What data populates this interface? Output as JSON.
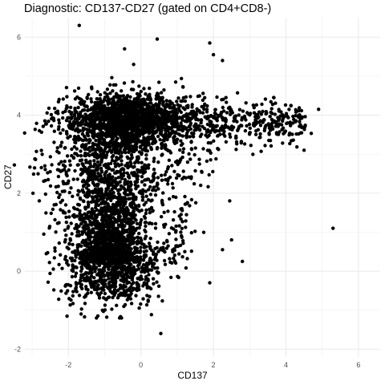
{
  "chart_data": {
    "type": "scatter",
    "title": "Diagnostic: CD137-CD27 (gated on CD4+CD8-)",
    "xlabel": "CD137",
    "ylabel": "CD27",
    "xlim": [
      -3.2,
      6.6
    ],
    "ylim": [
      -2.2,
      6.5
    ],
    "x_ticks": [
      -2,
      0,
      2,
      4,
      6
    ],
    "y_ticks": [
      -2,
      0,
      2,
      4,
      6
    ],
    "grid": true,
    "point_color": "#000000",
    "outlier_points": [
      {
        "x": 0.45,
        "y": 5.95
      },
      {
        "x": 1.9,
        "y": 5.85
      },
      {
        "x": 2.0,
        "y": 5.55
      },
      {
        "x": 2.25,
        "y": 5.4
      },
      {
        "x": 4.9,
        "y": 4.15
      },
      {
        "x": 4.4,
        "y": 3.75
      },
      {
        "x": 4.5,
        "y": 3.1
      },
      {
        "x": 5.3,
        "y": 1.1
      },
      {
        "x": 2.45,
        "y": 1.8
      },
      {
        "x": 2.5,
        "y": 0.8
      },
      {
        "x": 2.25,
        "y": 0.55
      },
      {
        "x": 2.8,
        "y": 0.25
      },
      {
        "x": 1.9,
        "y": -0.3
      },
      {
        "x": 0.55,
        "y": -1.6
      },
      {
        "x": -1.65,
        "y": -1.1
      },
      {
        "x": -1.8,
        "y": -0.45
      },
      {
        "x": -2.0,
        "y": -0.35
      },
      {
        "x": -2.5,
        "y": 2.55
      },
      {
        "x": -2.8,
        "y": 3.6
      },
      {
        "x": -1.7,
        "y": 6.3
      },
      {
        "x": -0.45,
        "y": 5.7
      },
      {
        "x": -0.2,
        "y": 5.3
      }
    ]
  }
}
